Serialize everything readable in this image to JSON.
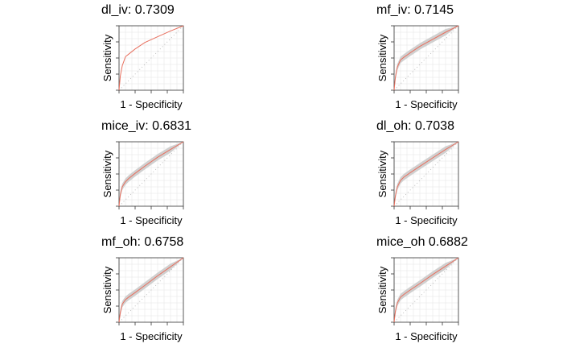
{
  "panels": [
    {
      "title": "dl_iv: 0.7309"
    },
    {
      "title": "mf_iv: 0.7145"
    },
    {
      "title": "mice_iv: 0.6831"
    },
    {
      "title": "dl_oh: 0.7038"
    },
    {
      "title": "mf_oh: 0.6758"
    },
    {
      "title": "mice_oh 0.6882"
    }
  ],
  "chart_data": [
    {
      "type": "line",
      "title": "dl_iv: 0.7309",
      "xlabel": "1 - Specificity",
      "ylabel": "Sensitivity",
      "xlim": [
        0,
        1
      ],
      "ylim": [
        0,
        1
      ],
      "grid": true,
      "series": [
        {
          "color": "#e8705f",
          "x": [
            0,
            0.02,
            0.05,
            0.1,
            0.15,
            0.25,
            0.4,
            0.6,
            0.8,
            1.0
          ],
          "y": [
            0,
            0.22,
            0.38,
            0.52,
            0.56,
            0.64,
            0.74,
            0.83,
            0.92,
            1.0
          ]
        }
      ],
      "band": false
    },
    {
      "type": "line",
      "title": "mf_iv: 0.7145",
      "xlabel": "1 - Specificity",
      "ylabel": "Sensitivity",
      "xlim": [
        0,
        1
      ],
      "ylim": [
        0,
        1
      ],
      "grid": true,
      "series": [
        {
          "color": "#e8705f",
          "x": [
            0,
            0.02,
            0.05,
            0.1,
            0.15,
            0.25,
            0.4,
            0.6,
            0.8,
            1.0
          ],
          "y": [
            0,
            0.2,
            0.36,
            0.47,
            0.51,
            0.58,
            0.68,
            0.79,
            0.9,
            1.0
          ]
        }
      ],
      "band": true
    },
    {
      "type": "line",
      "title": "mice_iv: 0.6831",
      "xlabel": "1 - Specificity",
      "ylabel": "Sensitivity",
      "xlim": [
        0,
        1
      ],
      "ylim": [
        0,
        1
      ],
      "grid": true,
      "series": [
        {
          "color": "#e8705f",
          "x": [
            0,
            0.02,
            0.05,
            0.1,
            0.15,
            0.25,
            0.4,
            0.6,
            0.8,
            1.0
          ],
          "y": [
            0,
            0.18,
            0.3,
            0.38,
            0.43,
            0.51,
            0.62,
            0.76,
            0.88,
            1.0
          ]
        }
      ],
      "band": true
    },
    {
      "type": "line",
      "title": "dl_oh: 0.7038",
      "xlabel": "1 - Specificity",
      "ylabel": "Sensitivity",
      "xlim": [
        0,
        1
      ],
      "ylim": [
        0,
        1
      ],
      "grid": true,
      "series": [
        {
          "color": "#e8705f",
          "x": [
            0,
            0.02,
            0.05,
            0.1,
            0.15,
            0.25,
            0.4,
            0.6,
            0.8,
            1.0
          ],
          "y": [
            0,
            0.16,
            0.3,
            0.4,
            0.45,
            0.52,
            0.62,
            0.75,
            0.88,
            1.0
          ]
        }
      ],
      "band": true
    },
    {
      "type": "line",
      "title": "mf_oh: 0.6758",
      "xlabel": "1 - Specificity",
      "ylabel": "Sensitivity",
      "xlim": [
        0,
        1
      ],
      "ylim": [
        0,
        1
      ],
      "grid": true,
      "series": [
        {
          "color": "#e8705f",
          "x": [
            0,
            0.02,
            0.05,
            0.1,
            0.15,
            0.25,
            0.4,
            0.6,
            0.8,
            1.0
          ],
          "y": [
            0,
            0.15,
            0.28,
            0.35,
            0.39,
            0.46,
            0.57,
            0.72,
            0.86,
            1.0
          ]
        }
      ],
      "band": true
    },
    {
      "type": "line",
      "title": "mice_oh 0.6882",
      "xlabel": "1 - Specificity",
      "ylabel": "Sensitivity",
      "xlim": [
        0,
        1
      ],
      "ylim": [
        0,
        1
      ],
      "grid": true,
      "series": [
        {
          "color": "#e8705f",
          "x": [
            0,
            0.02,
            0.05,
            0.1,
            0.15,
            0.25,
            0.4,
            0.6,
            0.8,
            1.0
          ],
          "y": [
            0,
            0.17,
            0.3,
            0.39,
            0.43,
            0.5,
            0.6,
            0.74,
            0.87,
            1.0
          ]
        }
      ],
      "band": true
    }
  ],
  "colors": {
    "roc_line": "#e8705f",
    "ci_band": "#c8c8c8",
    "diagonal": "#b0b0b0",
    "grid": "#e6e6e6"
  }
}
